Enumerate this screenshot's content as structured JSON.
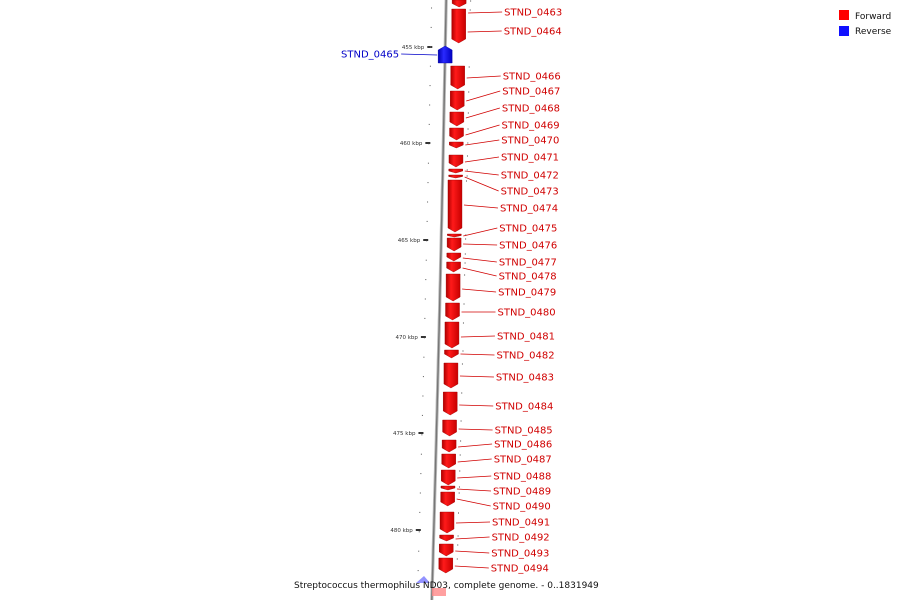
{
  "caption": "Streptococcus thermophilus ND03, complete genome. - 0..1831949",
  "legend": [
    {
      "label": "Forward",
      "color": "#ff0000"
    },
    {
      "label": "Reverse",
      "color": "#1010ff"
    }
  ],
  "colors": {
    "forward": "#e80000",
    "reverse": "#1a1aff",
    "forward_label": "#d00000",
    "reverse_label": "#0000c8"
  },
  "ticks": [
    "455 kbp",
    "460 kbp",
    "465 kbp",
    "470 kbp",
    "475 kbp",
    "480 kbp"
  ],
  "genes": [
    {
      "name": "STND_0463",
      "strand": "forward"
    },
    {
      "name": "STND_0464",
      "strand": "forward"
    },
    {
      "name": "STND_0465",
      "strand": "reverse"
    },
    {
      "name": "STND_0466",
      "strand": "forward"
    },
    {
      "name": "STND_0467",
      "strand": "forward"
    },
    {
      "name": "STND_0468",
      "strand": "forward"
    },
    {
      "name": "STND_0469",
      "strand": "forward"
    },
    {
      "name": "STND_0470",
      "strand": "forward"
    },
    {
      "name": "STND_0471",
      "strand": "forward"
    },
    {
      "name": "STND_0472",
      "strand": "forward"
    },
    {
      "name": "STND_0473",
      "strand": "forward"
    },
    {
      "name": "STND_0474",
      "strand": "forward"
    },
    {
      "name": "STND_0475",
      "strand": "forward"
    },
    {
      "name": "STND_0476",
      "strand": "forward"
    },
    {
      "name": "STND_0477",
      "strand": "forward"
    },
    {
      "name": "STND_0478",
      "strand": "forward"
    },
    {
      "name": "STND_0479",
      "strand": "forward"
    },
    {
      "name": "STND_0480",
      "strand": "forward"
    },
    {
      "name": "STND_0481",
      "strand": "forward"
    },
    {
      "name": "STND_0482",
      "strand": "forward"
    },
    {
      "name": "STND_0483",
      "strand": "forward"
    },
    {
      "name": "STND_0484",
      "strand": "forward"
    },
    {
      "name": "STND_0485",
      "strand": "forward"
    },
    {
      "name": "STND_0486",
      "strand": "forward"
    },
    {
      "name": "STND_0487",
      "strand": "forward"
    },
    {
      "name": "STND_0488",
      "strand": "forward"
    },
    {
      "name": "STND_0489",
      "strand": "forward"
    },
    {
      "name": "STND_0490",
      "strand": "forward"
    },
    {
      "name": "STND_0491",
      "strand": "forward"
    },
    {
      "name": "STND_0492",
      "strand": "forward"
    },
    {
      "name": "STND_0493",
      "strand": "forward"
    },
    {
      "name": "STND_0494",
      "strand": "forward"
    }
  ]
}
